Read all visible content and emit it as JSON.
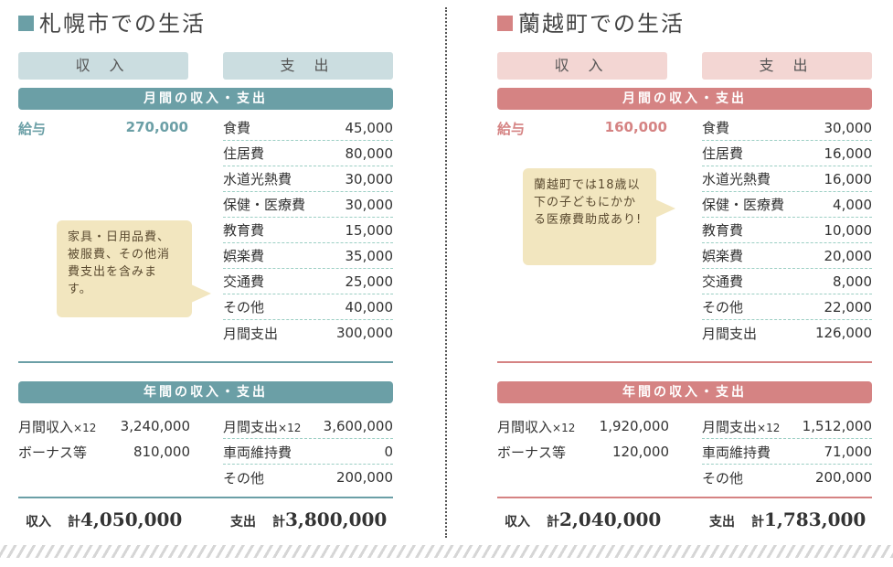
{
  "colors": {
    "left_accent": "#6b9fa6",
    "left_pill": "#cbdde0",
    "right_accent": "#d58383",
    "right_pill": "#f3d6d3",
    "bubble": "#f2e6bf"
  },
  "left": {
    "title": "札幌市での生活",
    "income_header": "収 入",
    "expense_header": "支 出",
    "monthly_banner": "月間の収入・支出",
    "salary_label": "給与",
    "salary_value": "270,000",
    "expenses": [
      {
        "label": "食費",
        "value": "45,000"
      },
      {
        "label": "住居費",
        "value": "80,000"
      },
      {
        "label": "水道光熱費",
        "value": "30,000"
      },
      {
        "label": "保健・医療費",
        "value": "30,000"
      },
      {
        "label": "教育費",
        "value": "15,000"
      },
      {
        "label": "娯楽費",
        "value": "35,000"
      },
      {
        "label": "交通費",
        "value": "25,000"
      },
      {
        "label": "その他",
        "value": "40,000"
      },
      {
        "label": "月間支出",
        "value": "300,000"
      }
    ],
    "note": "家具・日用品費、被服費、その他消費支出を含みます。",
    "annual_banner": "年間の収入・支出",
    "annual": {
      "monthly_income_label": "月間収入",
      "monthly_income_mult": "×12",
      "monthly_income_value": "3,240,000",
      "monthly_expense_label": "月間支出",
      "monthly_expense_mult": "×12",
      "monthly_expense_value": "3,600,000",
      "bonus_label": "ボーナス等",
      "bonus_value": "810,000",
      "car_label": "車両維持費",
      "car_value": "0",
      "other_label": "その他",
      "other_value": "200,000"
    },
    "total_income_label": "収入",
    "total_income_kei": "計",
    "total_income_value": "4,050,000",
    "total_expense_label": "支出",
    "total_expense_kei": "計",
    "total_expense_value": "3,800,000"
  },
  "right": {
    "title": "蘭越町での生活",
    "income_header": "収 入",
    "expense_header": "支 出",
    "monthly_banner": "月間の収入・支出",
    "salary_label": "給与",
    "salary_value": "160,000",
    "expenses": [
      {
        "label": "食費",
        "value": "30,000"
      },
      {
        "label": "住居費",
        "value": "16,000"
      },
      {
        "label": "水道光熱費",
        "value": "16,000"
      },
      {
        "label": "保健・医療費",
        "value": "4,000"
      },
      {
        "label": "教育費",
        "value": "10,000"
      },
      {
        "label": "娯楽費",
        "value": "20,000"
      },
      {
        "label": "交通費",
        "value": "8,000"
      },
      {
        "label": "その他",
        "value": "22,000"
      },
      {
        "label": "月間支出",
        "value": "126,000"
      }
    ],
    "note": "蘭越町では18歳以下の子どもにかかる医療費助成あり!",
    "annual_banner": "年間の収入・支出",
    "annual": {
      "monthly_income_label": "月間収入",
      "monthly_income_mult": "×12",
      "monthly_income_value": "1,920,000",
      "monthly_expense_label": "月間支出",
      "monthly_expense_mult": "×12",
      "monthly_expense_value": "1,512,000",
      "bonus_label": "ボーナス等",
      "bonus_value": "120,000",
      "car_label": "車両維持費",
      "car_value": "71,000",
      "other_label": "その他",
      "other_value": "200,000"
    },
    "total_income_label": "収入",
    "total_income_kei": "計",
    "total_income_value": "2,040,000",
    "total_expense_label": "支出",
    "total_expense_kei": "計",
    "total_expense_value": "1,783,000"
  }
}
